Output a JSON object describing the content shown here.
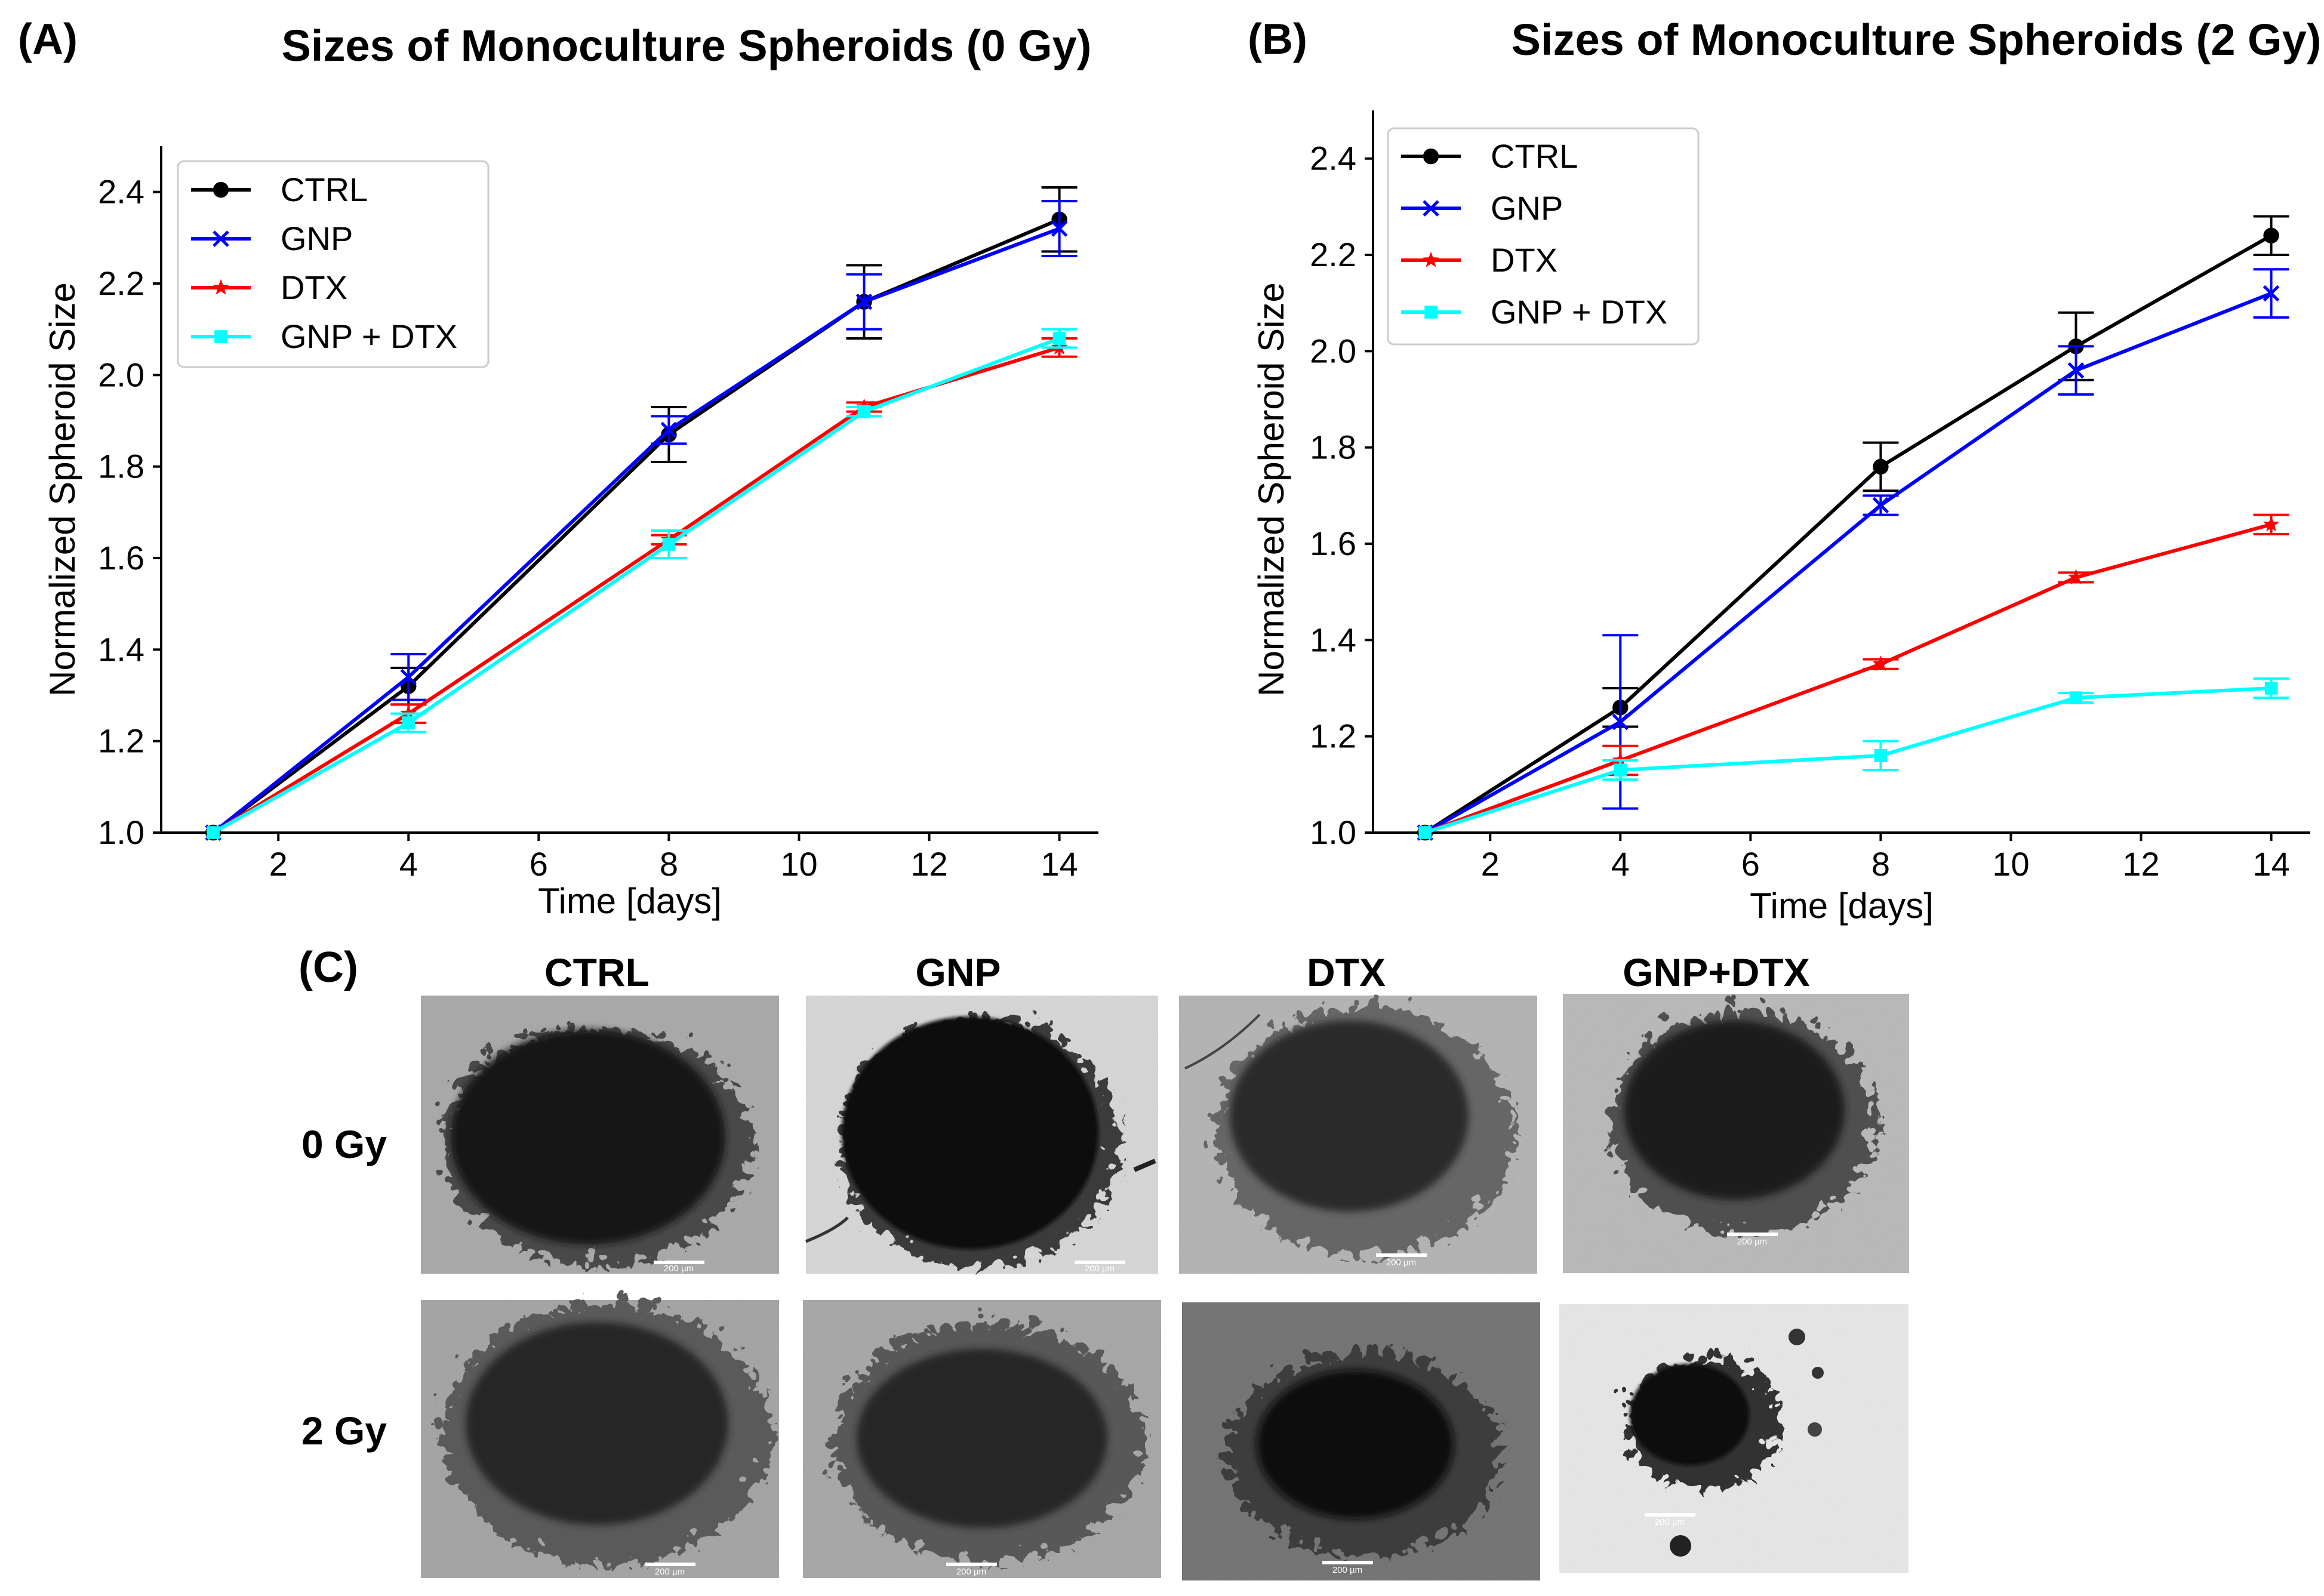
{
  "panels": {
    "A": {
      "label": "(A)",
      "title": "Sizes of Monoculture Spheroids (0 Gy)"
    },
    "B": {
      "label": "(B)",
      "title": "Sizes of Monoculture Spheroids (2 Gy)"
    },
    "C": {
      "label": "(C)"
    }
  },
  "chart_data": [
    {
      "type": "line",
      "title": "Sizes of Monoculture Spheroids (0 Gy)",
      "xlabel": "Time [days]",
      "ylabel": "Normalized Spheroid Size",
      "x": [
        1,
        4,
        8,
        11,
        14
      ],
      "xlim": [
        0.2,
        14.6
      ],
      "ylim": [
        1.0,
        2.5
      ],
      "xticks": [
        "2",
        "4",
        "6",
        "8",
        "10",
        "12",
        "14"
      ],
      "yticks": [
        "1.0",
        "1.2",
        "1.4",
        "1.6",
        "1.8",
        "2.0",
        "2.2",
        "2.4"
      ],
      "legend_position": "top-left",
      "grid": false,
      "series": [
        {
          "name": "CTRL",
          "color": "#000000",
          "marker": "circle",
          "values": [
            1.0,
            1.32,
            1.87,
            2.16,
            2.34
          ],
          "errors": [
            0,
            0.04,
            0.06,
            0.08,
            0.07
          ]
        },
        {
          "name": "GNP",
          "color": "#0000ff",
          "marker": "x",
          "values": [
            1.0,
            1.34,
            1.88,
            2.16,
            2.32
          ],
          "errors": [
            0,
            0.05,
            0.03,
            0.06,
            0.06
          ]
        },
        {
          "name": "DTX",
          "color": "#ff0000",
          "marker": "star",
          "values": [
            1.0,
            1.26,
            1.64,
            1.93,
            2.06
          ],
          "errors": [
            0,
            0.02,
            0.01,
            0.01,
            0.02
          ]
        },
        {
          "name": "GNP + DTX",
          "color": "#00ffff",
          "marker": "square",
          "values": [
            1.0,
            1.24,
            1.63,
            1.92,
            2.08
          ],
          "errors": [
            0,
            0.02,
            0.03,
            0.01,
            0.02
          ]
        }
      ]
    },
    {
      "type": "line",
      "title": "Sizes of Monoculture Spheroids (2 Gy)",
      "xlabel": "Time [days]",
      "ylabel": "Normalized Spheroid Size",
      "x": [
        1,
        4,
        8,
        11,
        14
      ],
      "xlim": [
        0.2,
        14.6
      ],
      "ylim": [
        1.0,
        2.5
      ],
      "xticks": [
        "2",
        "4",
        "6",
        "8",
        "10",
        "12",
        "14"
      ],
      "yticks": [
        "1.0",
        "1.2",
        "1.4",
        "1.6",
        "1.8",
        "2.0",
        "2.2",
        "2.4"
      ],
      "legend_position": "top-left",
      "grid": false,
      "series": [
        {
          "name": "CTRL",
          "color": "#000000",
          "marker": "circle",
          "values": [
            1.0,
            1.26,
            1.76,
            2.01,
            2.24
          ],
          "errors": [
            0,
            0.04,
            0.05,
            0.07,
            0.04
          ]
        },
        {
          "name": "GNP",
          "color": "#0000ff",
          "marker": "x",
          "values": [
            1.0,
            1.23,
            1.68,
            1.96,
            2.12
          ],
          "errors": [
            0,
            0.18,
            0.02,
            0.05,
            0.05
          ]
        },
        {
          "name": "DTX",
          "color": "#ff0000",
          "marker": "star",
          "values": [
            1.0,
            1.15,
            1.35,
            1.53,
            1.64
          ],
          "errors": [
            0,
            0.03,
            0.01,
            0.01,
            0.02
          ]
        },
        {
          "name": "GNP + DTX",
          "color": "#00ffff",
          "marker": "square",
          "values": [
            1.0,
            1.13,
            1.16,
            1.28,
            1.3
          ],
          "errors": [
            0,
            0.02,
            0.03,
            0.01,
            0.02
          ]
        }
      ]
    }
  ],
  "micrographs": {
    "columns": [
      "CTRL",
      "GNP",
      "DTX",
      "GNP+DTX"
    ],
    "rows": [
      "0 Gy",
      "2 Gy"
    ],
    "scale_bar_label": "200 µm"
  }
}
